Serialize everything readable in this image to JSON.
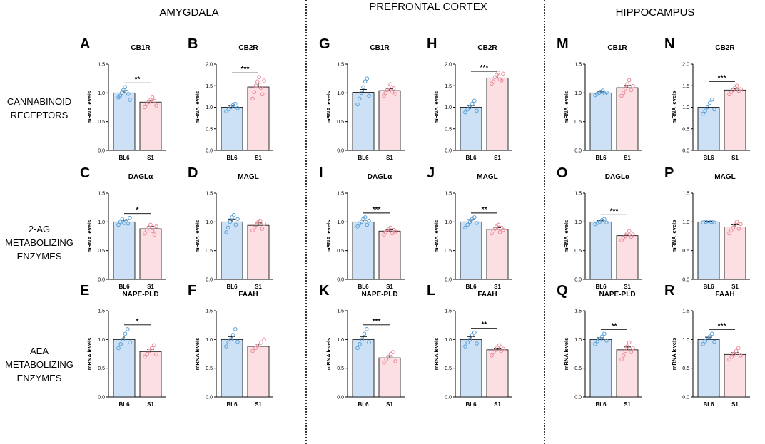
{
  "regions": [
    "AMYGDALA",
    "PREFRONTAL CORTEX",
    "HIPPOCAMPUS"
  ],
  "rows": [
    "CANNABINOID RECEPTORS",
    "2-AG METABOLIZING ENZYMES",
    "AEA METABOLIZING ENZYMES"
  ],
  "colors": {
    "bl6_fill": "#cce1f5",
    "bl6_point": "#5aa0d8",
    "s1_fill": "#fbdfe3",
    "s1_point": "#ec8a9a",
    "divider": "#333333"
  },
  "chart_data": [
    {
      "panel": "A",
      "title": "CB1R",
      "region": "AMYGDALA",
      "type": "bar",
      "categories": [
        "BL6",
        "S1"
      ],
      "values": [
        1.0,
        0.84
      ],
      "errors": [
        0.04,
        0.03
      ],
      "ylabel": "mRNA levels",
      "ylim": [
        0,
        1.5
      ],
      "yticks": [
        "0.0",
        "0.5",
        "1.0",
        "1.5"
      ],
      "significance": "**",
      "points": [
        [
          0.92,
          0.95,
          1.0,
          1.05,
          1.1,
          1.02,
          0.98,
          0.88
        ],
        [
          0.75,
          0.8,
          0.84,
          0.88,
          0.92,
          0.86,
          0.78
        ]
      ]
    },
    {
      "panel": "B",
      "title": "CB2R",
      "region": "AMYGDALA",
      "type": "bar",
      "categories": [
        "BL6",
        "S1"
      ],
      "values": [
        1.0,
        1.47
      ],
      "errors": [
        0.04,
        0.09
      ],
      "ylabel": "mRNA levels",
      "ylim": [
        0,
        2.0
      ],
      "yticks": [
        "0.0",
        "0.5",
        "1.0",
        "1.5",
        "2.0"
      ],
      "significance": "***",
      "points": [
        [
          0.9,
          0.95,
          1.0,
          1.05,
          1.08,
          0.98
        ],
        [
          1.2,
          1.35,
          1.5,
          1.6,
          1.7,
          1.45,
          1.3,
          1.62
        ]
      ]
    },
    {
      "panel": "C",
      "title": "DAGLα",
      "region": "AMYGDALA",
      "type": "bar",
      "categories": [
        "BL6",
        "S1"
      ],
      "values": [
        1.0,
        0.88
      ],
      "errors": [
        0.03,
        0.04
      ],
      "ylabel": "mRNA levels",
      "ylim": [
        0,
        1.5
      ],
      "yticks": [
        "0.0",
        "0.5",
        "1.0",
        "1.5"
      ],
      "significance": "*",
      "points": [
        [
          0.95,
          1.0,
          1.05,
          0.98,
          1.02,
          0.97,
          1.07
        ],
        [
          0.8,
          0.85,
          0.9,
          0.95,
          0.84,
          0.78,
          0.92
        ]
      ]
    },
    {
      "panel": "D",
      "title": "MAGL",
      "region": "AMYGDALA",
      "type": "bar",
      "categories": [
        "BL6",
        "S1"
      ],
      "values": [
        1.0,
        0.94
      ],
      "errors": [
        0.05,
        0.04
      ],
      "ylabel": "mRNA levels",
      "ylim": [
        0,
        1.5
      ],
      "yticks": [
        "0.0",
        "0.5",
        "1.0",
        "1.5"
      ],
      "significance": "",
      "points": [
        [
          0.82,
          0.9,
          1.0,
          1.08,
          1.12,
          0.95,
          1.05
        ],
        [
          0.85,
          0.9,
          0.95,
          1.0,
          1.02,
          0.88,
          0.97
        ]
      ]
    },
    {
      "panel": "E",
      "title": "NAPE-PLD",
      "region": "AMYGDALA",
      "type": "bar",
      "categories": [
        "BL6",
        "S1"
      ],
      "values": [
        1.0,
        0.79
      ],
      "errors": [
        0.06,
        0.04
      ],
      "ylabel": "mRNA levels",
      "ylim": [
        0,
        1.5
      ],
      "yticks": [
        "0.0",
        "0.5",
        "1.0",
        "1.5"
      ],
      "significance": "*",
      "points": [
        [
          0.85,
          0.92,
          1.0,
          1.1,
          1.18,
          0.95
        ],
        [
          0.7,
          0.75,
          0.8,
          0.85,
          0.9,
          0.74
        ]
      ]
    },
    {
      "panel": "F",
      "title": "FAAH",
      "region": "AMYGDALA",
      "type": "bar",
      "categories": [
        "BL6",
        "S1"
      ],
      "values": [
        1.0,
        0.88
      ],
      "errors": [
        0.05,
        0.04
      ],
      "ylabel": "mRNA levels",
      "ylim": [
        0,
        1.5
      ],
      "yticks": [
        "0.0",
        "0.5",
        "1.0",
        "1.5"
      ],
      "significance": "",
      "points": [
        [
          0.88,
          0.95,
          1.0,
          1.08,
          1.18,
          0.96
        ],
        [
          0.8,
          0.85,
          0.9,
          0.95,
          1.0
        ]
      ]
    },
    {
      "panel": "G",
      "title": "CB1R",
      "region": "PREFRONTAL CORTEX",
      "type": "bar",
      "categories": [
        "BL6",
        "S1"
      ],
      "values": [
        1.01,
        1.04
      ],
      "errors": [
        0.05,
        0.03
      ],
      "ylabel": "mRNA levels",
      "ylim": [
        0,
        1.5
      ],
      "yticks": [
        "0.0",
        "0.5",
        "1.0",
        "1.5"
      ],
      "significance": "",
      "points": [
        [
          0.8,
          0.9,
          1.0,
          1.1,
          1.2,
          1.25,
          0.95
        ],
        [
          0.95,
          1.0,
          1.05,
          1.1,
          1.15,
          1.02,
          1.08,
          0.98
        ]
      ]
    },
    {
      "panel": "H",
      "title": "CB2R",
      "region": "PREFRONTAL CORTEX",
      "type": "bar",
      "categories": [
        "BL6",
        "S1"
      ],
      "values": [
        1.0,
        1.68
      ],
      "errors": [
        0.04,
        0.05
      ],
      "ylabel": "mRNA levels",
      "ylim": [
        0,
        2.0
      ],
      "yticks": [
        "0.0",
        "0.5",
        "1.0",
        "1.5",
        "2.0"
      ],
      "significance": "***",
      "points": [
        [
          0.88,
          0.95,
          1.0,
          1.08,
          1.15,
          0.92
        ],
        [
          1.55,
          1.6,
          1.7,
          1.75,
          1.8,
          1.65,
          1.62,
          1.78
        ]
      ]
    },
    {
      "panel": "I",
      "title": "DAGLα",
      "region": "PREFRONTAL CORTEX",
      "type": "bar",
      "categories": [
        "BL6",
        "S1"
      ],
      "values": [
        1.0,
        0.84
      ],
      "errors": [
        0.03,
        0.02
      ],
      "ylabel": "mRNA levels",
      "ylim": [
        0,
        1.5
      ],
      "yticks": [
        "0.0",
        "0.5",
        "1.0",
        "1.5"
      ],
      "significance": "***",
      "points": [
        [
          0.92,
          0.97,
          1.0,
          1.05,
          1.08,
          0.95,
          1.02
        ],
        [
          0.78,
          0.82,
          0.85,
          0.88,
          0.9,
          0.8,
          0.86,
          0.83
        ]
      ]
    },
    {
      "panel": "J",
      "title": "MAGL",
      "region": "PREFRONTAL CORTEX",
      "type": "bar",
      "categories": [
        "BL6",
        "S1"
      ],
      "values": [
        1.0,
        0.87
      ],
      "errors": [
        0.04,
        0.03
      ],
      "ylabel": "mRNA levels",
      "ylim": [
        0,
        1.5
      ],
      "yticks": [
        "0.0",
        "0.5",
        "1.0",
        "1.5"
      ],
      "significance": "**",
      "points": [
        [
          0.9,
          0.95,
          1.0,
          1.05,
          1.08,
          0.98
        ],
        [
          0.8,
          0.85,
          0.88,
          0.92,
          0.95,
          0.82,
          0.9,
          0.86
        ]
      ]
    },
    {
      "panel": "K",
      "title": "NAPE-PLD",
      "region": "PREFRONTAL CORTEX",
      "type": "bar",
      "categories": [
        "BL6",
        "S1"
      ],
      "values": [
        1.0,
        0.68
      ],
      "errors": [
        0.05,
        0.03
      ],
      "ylabel": "mRNA levels",
      "ylim": [
        0,
        1.5
      ],
      "yticks": [
        "0.0",
        "0.5",
        "1.0",
        "1.5"
      ],
      "significance": "***",
      "points": [
        [
          0.85,
          0.92,
          1.0,
          1.1,
          1.18,
          0.95
        ],
        [
          0.6,
          0.65,
          0.7,
          0.75,
          0.78,
          0.62
        ]
      ]
    },
    {
      "panel": "L",
      "title": "FAAH",
      "region": "PREFRONTAL CORTEX",
      "type": "bar",
      "categories": [
        "BL6",
        "S1"
      ],
      "values": [
        1.0,
        0.82
      ],
      "errors": [
        0.05,
        0.03
      ],
      "ylabel": "mRNA levels",
      "ylim": [
        0,
        1.5
      ],
      "yticks": [
        "0.0",
        "0.5",
        "1.0",
        "1.5"
      ],
      "significance": "**",
      "points": [
        [
          0.88,
          0.95,
          1.0,
          1.08,
          1.12,
          0.93
        ],
        [
          0.72,
          0.78,
          0.82,
          0.86,
          0.9,
          0.8,
          0.84
        ]
      ]
    },
    {
      "panel": "M",
      "title": "CB1R",
      "region": "HIPPOCAMPUS",
      "type": "bar",
      "categories": [
        "BL6",
        "S1"
      ],
      "values": [
        1.0,
        1.09
      ],
      "errors": [
        0.02,
        0.04
      ],
      "ylabel": "mRNA levels",
      "ylim": [
        0,
        1.5
      ],
      "yticks": [
        "0.0",
        "0.5",
        "1.0",
        "1.5"
      ],
      "significance": "",
      "points": [
        [
          0.96,
          0.98,
          1.0,
          1.02,
          1.04,
          0.99,
          1.01
        ],
        [
          0.95,
          1.0,
          1.08,
          1.15,
          1.22,
          1.05,
          1.12
        ]
      ]
    },
    {
      "panel": "N",
      "title": "CB2R",
      "region": "HIPPOCAMPUS",
      "type": "bar",
      "categories": [
        "BL6",
        "S1"
      ],
      "values": [
        1.0,
        1.4
      ],
      "errors": [
        0.05,
        0.04
      ],
      "ylabel": "mRNA levels",
      "ylim": [
        0,
        2.0
      ],
      "yticks": [
        "0.0",
        "0.5",
        "1.0",
        "1.5",
        "2.0"
      ],
      "significance": "***",
      "points": [
        [
          0.85,
          0.92,
          1.0,
          1.1,
          1.18,
          0.95
        ],
        [
          1.3,
          1.35,
          1.4,
          1.45,
          1.5,
          1.38,
          1.42
        ]
      ]
    },
    {
      "panel": "O",
      "title": "DAGLα",
      "region": "HIPPOCAMPUS",
      "type": "bar",
      "categories": [
        "BL6",
        "S1"
      ],
      "values": [
        1.0,
        0.76
      ],
      "errors": [
        0.02,
        0.03
      ],
      "ylabel": "mRNA levels",
      "ylim": [
        0,
        1.5
      ],
      "yticks": [
        "0.0",
        "0.5",
        "1.0",
        "1.5"
      ],
      "significance": "***",
      "points": [
        [
          0.96,
          0.98,
          1.0,
          1.03,
          1.05,
          0.99
        ],
        [
          0.68,
          0.72,
          0.75,
          0.8,
          0.84,
          0.74,
          0.78
        ]
      ]
    },
    {
      "panel": "P",
      "title": "MAGL",
      "region": "HIPPOCAMPUS",
      "type": "bar",
      "categories": [
        "BL6",
        "S1"
      ],
      "values": [
        1.0,
        0.91
      ],
      "errors": [
        0.01,
        0.04
      ],
      "ylabel": "mRNA levels",
      "ylim": [
        0,
        1.5
      ],
      "yticks": [
        "0.0",
        "0.5",
        "1.0",
        "1.5"
      ],
      "significance": "",
      "points": [
        [
          0.99,
          1.0,
          1.01,
          1.0,
          0.99
        ],
        [
          0.8,
          0.85,
          0.9,
          0.95,
          1.0,
          0.88,
          0.96
        ]
      ]
    },
    {
      "panel": "Q",
      "title": "NAPE-PLD",
      "region": "HIPPOCAMPUS",
      "type": "bar",
      "categories": [
        "BL6",
        "S1"
      ],
      "values": [
        1.0,
        0.82
      ],
      "errors": [
        0.03,
        0.05
      ],
      "ylabel": "mRNA levels",
      "ylim": [
        0,
        1.5
      ],
      "yticks": [
        "0.0",
        "0.5",
        "1.0",
        "1.5"
      ],
      "significance": "**",
      "points": [
        [
          0.92,
          0.97,
          1.0,
          1.05,
          1.1,
          0.98
        ],
        [
          0.65,
          0.72,
          0.8,
          0.88,
          0.95,
          0.78,
          0.85
        ]
      ]
    },
    {
      "panel": "R",
      "title": "FAAH",
      "region": "HIPPOCAMPUS",
      "type": "bar",
      "categories": [
        "BL6",
        "S1"
      ],
      "values": [
        1.0,
        0.74
      ],
      "errors": [
        0.04,
        0.03
      ],
      "ylabel": "mRNA levels",
      "ylim": [
        0,
        1.5
      ],
      "yticks": [
        "0.0",
        "0.5",
        "1.0",
        "1.5"
      ],
      "significance": "***",
      "points": [
        [
          0.92,
          0.97,
          1.0,
          1.05,
          1.1,
          0.96
        ],
        [
          0.65,
          0.7,
          0.75,
          0.8,
          0.85,
          0.72
        ]
      ]
    }
  ]
}
